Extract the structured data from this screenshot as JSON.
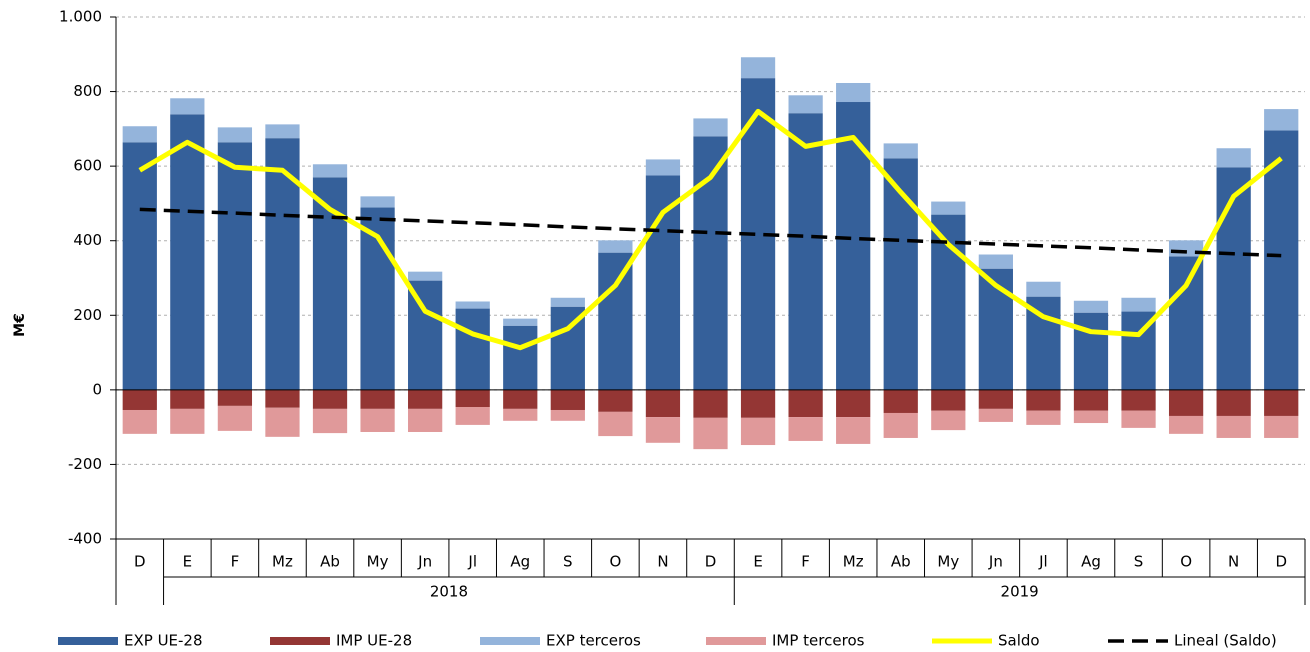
{
  "chart_data": {
    "type": "bar",
    "y_label": "M€",
    "categories": [
      "D",
      "E",
      "F",
      "Mz",
      "Ab",
      "My",
      "Jn",
      "Jl",
      "Ag",
      "S",
      "O",
      "N",
      "D",
      "E",
      "F",
      "Mz",
      "Ab",
      "My",
      "Jn",
      "Jl",
      "Ag",
      "S",
      "O",
      "N",
      "D"
    ],
    "x_groups": [
      {
        "label": "2018",
        "span": [
          1,
          12
        ]
      },
      {
        "label": "2019",
        "span": [
          13,
          24
        ]
      }
    ],
    "ylim": [
      -400,
      1000
    ],
    "yticks": [
      {
        "value": -400,
        "label": "-400"
      },
      {
        "value": -200,
        "label": "-200"
      },
      0,
      200,
      400,
      600,
      800,
      {
        "value": 1000,
        "label": "1.000"
      }
    ],
    "grid": true,
    "series": [
      {
        "name": "EXP UE-28",
        "color": "#35609a",
        "kind": "bar",
        "values": [
          664,
          739,
          664,
          675,
          570,
          489,
          293,
          218,
          172,
          223,
          368,
          575,
          680,
          836,
          742,
          772,
          621,
          470,
          325,
          250,
          207,
          210,
          358,
          597,
          696
        ]
      },
      {
        "name": "IMP UE-28",
        "color": "#943634",
        "kind": "bar",
        "values": [
          -54,
          -51,
          -43,
          -48,
          -51,
          -51,
          -51,
          -46,
          -51,
          -54,
          -59,
          -73,
          -75,
          -75,
          -73,
          -73,
          -62,
          -56,
          -51,
          -56,
          -56,
          -56,
          -70,
          -70,
          -70
        ]
      },
      {
        "name": "EXP terceros",
        "color": "#94b4db",
        "kind": "bar",
        "values": [
          43,
          43,
          40,
          37,
          35,
          30,
          24,
          19,
          19,
          24,
          33,
          43,
          48,
          56,
          48,
          51,
          40,
          35,
          38,
          40,
          32,
          37,
          43,
          51,
          57
        ]
      },
      {
        "name": "IMP terceros",
        "color": "#e0999a",
        "kind": "bar",
        "values": [
          -64,
          -67,
          -67,
          -78,
          -65,
          -62,
          -62,
          -48,
          -32,
          -29,
          -65,
          -69,
          -84,
          -73,
          -64,
          -72,
          -67,
          -52,
          -35,
          -38,
          -33,
          -46,
          -48,
          -59,
          -59
        ]
      },
      {
        "name": "Saldo",
        "color": "#ffff00",
        "kind": "line",
        "values": [
          589,
          664,
          597,
          589,
          484,
          411,
          211,
          150,
          113,
          164,
          280,
          476,
          570,
          747,
          653,
          677,
          530,
          390,
          280,
          196,
          156,
          148,
          280,
          519,
          621
        ]
      },
      {
        "name": "Lineal (Saldo)",
        "color": "#000000",
        "kind": "dashed",
        "values": [
          484,
          479,
          474,
          468,
          463,
          458,
          453,
          448,
          443,
          437,
          432,
          427,
          422,
          417,
          412,
          406,
          401,
          396,
          391,
          386,
          381,
          375,
          370,
          365,
          360
        ]
      }
    ]
  }
}
